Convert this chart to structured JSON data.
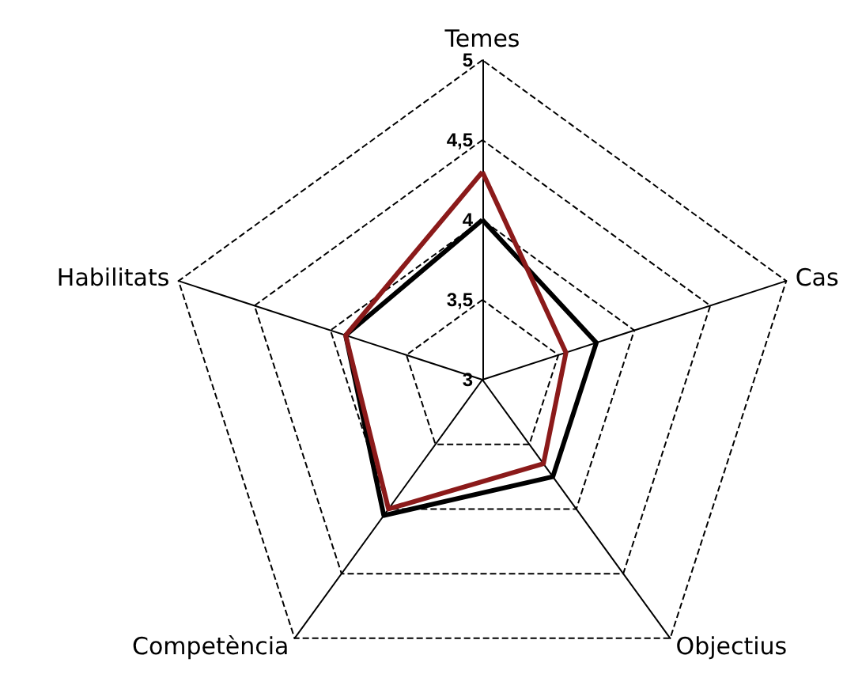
{
  "chart_data": {
    "type": "radar",
    "categories": [
      "Temes",
      "Cas",
      "Objectius",
      "Competència",
      "Habilitats"
    ],
    "series": [
      {
        "color": "#000000",
        "values": [
          4.0,
          3.75,
          3.75,
          4.05,
          3.9
        ]
      },
      {
        "color": "#8b1a1a",
        "values": [
          4.3,
          3.55,
          3.65,
          4.0,
          3.9
        ]
      }
    ],
    "ylim": [
      3,
      5
    ],
    "yticks": [
      3,
      {
        "value": 3.5,
        "label": "3,5"
      },
      4,
      {
        "value": 4.5,
        "label": "4,5"
      },
      5
    ],
    "grid": true,
    "line_style": "solid",
    "marker": "none"
  }
}
